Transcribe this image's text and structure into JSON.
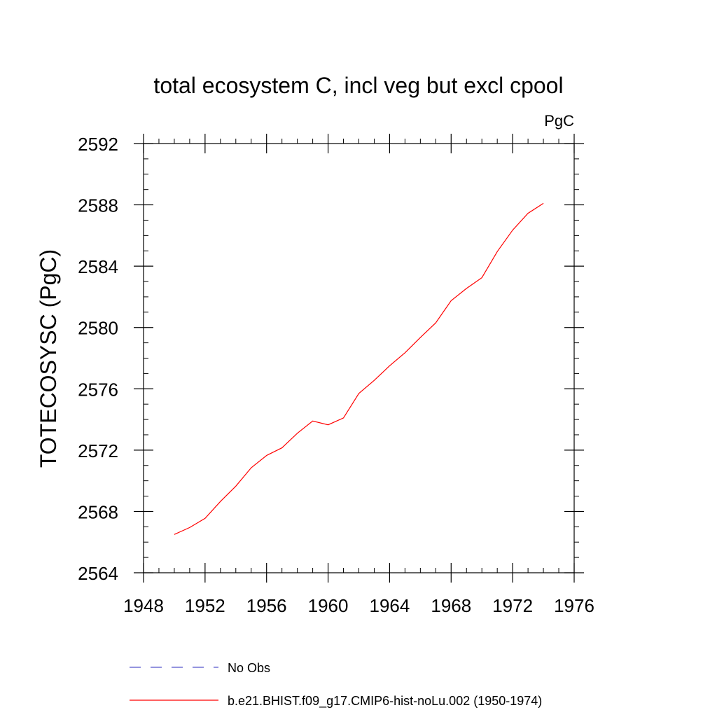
{
  "chart_data": {
    "type": "line",
    "title": "total ecosystem C, incl veg but excl cpool",
    "units_label": "PgC",
    "xlabel": "",
    "ylabel": "TOTECOSYSC  (PgC)",
    "xlim": [
      1948,
      1976
    ],
    "ylim": [
      2564,
      2592
    ],
    "x_ticks": [
      1948,
      1952,
      1956,
      1960,
      1964,
      1968,
      1972,
      1976
    ],
    "y_ticks": [
      2564,
      2568,
      2572,
      2576,
      2580,
      2584,
      2588,
      2592
    ],
    "x_minor_step": 1,
    "y_minor_step": 1,
    "grid": false,
    "legend_position": "bottom",
    "series": [
      {
        "name": "b.e21.BHIST.f09_g17.CMIP6-hist-noLu.002 (1950-1974)",
        "color": "#ff0000",
        "style": "solid",
        "x": [
          1950,
          1951,
          1952,
          1953,
          1954,
          1955,
          1956,
          1957,
          1958,
          1959,
          1960,
          1961,
          1962,
          1963,
          1964,
          1965,
          1966,
          1967,
          1968,
          1969,
          1970,
          1971,
          1972,
          1973,
          1974
        ],
        "y": [
          2566.5,
          2566.95,
          2567.55,
          2568.65,
          2569.65,
          2570.85,
          2571.65,
          2572.15,
          2573.1,
          2573.9,
          2573.65,
          2574.1,
          2575.7,
          2576.55,
          2577.5,
          2578.35,
          2579.35,
          2580.3,
          2581.75,
          2582.55,
          2583.25,
          2584.95,
          2586.35,
          2587.45,
          2588.1
        ]
      }
    ],
    "legend": [
      {
        "label": "No Obs",
        "color": "#5555cc",
        "style": "dashed"
      },
      {
        "label": "b.e21.BHIST.f09_g17.CMIP6-hist-noLu.002 (1950-1974)",
        "color": "#ff0000",
        "style": "solid"
      }
    ]
  }
}
